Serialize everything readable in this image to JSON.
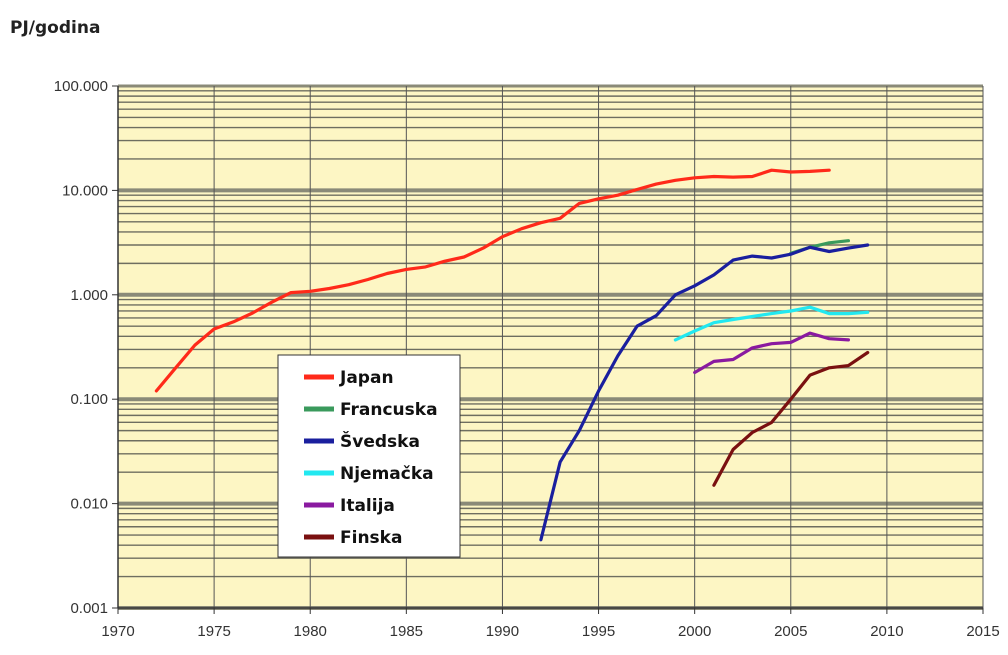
{
  "chart_data": {
    "type": "line",
    "ylabel": "PJ/godina",
    "yscale": "log",
    "ylim": [
      0.001,
      100
    ],
    "yticks": [
      {
        "value": 0.001,
        "label": "0.001"
      },
      {
        "value": 0.01,
        "label": "0.010"
      },
      {
        "value": 0.1,
        "label": "0.100"
      },
      {
        "value": 1,
        "label": "1.000"
      },
      {
        "value": 10,
        "label": "10.000"
      },
      {
        "value": 100,
        "label": "100.000"
      }
    ],
    "xlim": [
      1970,
      2015
    ],
    "xticks": [
      1970,
      1975,
      1980,
      1985,
      1990,
      1995,
      2000,
      2005,
      2010,
      2015
    ],
    "grid": true,
    "legend_position": "lower-left",
    "series": [
      {
        "name": "Japan",
        "color": "#ff2a1a",
        "x": [
          1972,
          1973,
          1974,
          1975,
          1976,
          1977,
          1978,
          1979,
          1980,
          1981,
          1982,
          1983,
          1984,
          1985,
          1986,
          1987,
          1988,
          1989,
          1990,
          1991,
          1992,
          1993,
          1994,
          1995,
          1996,
          1997,
          1998,
          1999,
          2000,
          2001,
          2002,
          2003,
          2004,
          2005,
          2006,
          2007
        ],
        "y": [
          0.12,
          0.2,
          0.33,
          0.47,
          0.55,
          0.67,
          0.85,
          1.05,
          1.08,
          1.15,
          1.25,
          1.4,
          1.6,
          1.75,
          1.85,
          2.1,
          2.3,
          2.8,
          3.6,
          4.3,
          4.9,
          5.4,
          7.5,
          8.3,
          9.0,
          10.2,
          11.5,
          12.5,
          13.2,
          13.6,
          13.4,
          13.6,
          15.6,
          15.0,
          15.2,
          15.6
        ]
      },
      {
        "name": "Francuska",
        "color": "#3a9a5c",
        "x": [
          2005,
          2006,
          2007,
          2008
        ],
        "y": [
          2.5,
          2.85,
          3.15,
          3.3
        ]
      },
      {
        "name": "Švedska",
        "color": "#1a1f9e",
        "x": [
          1992,
          1993,
          1994,
          1995,
          1996,
          1997,
          1998,
          1999,
          2000,
          2001,
          2002,
          2003,
          2004,
          2005,
          2006,
          2007,
          2008,
          2009
        ],
        "y": [
          0.0045,
          0.025,
          0.05,
          0.12,
          0.26,
          0.5,
          0.63,
          1.0,
          1.22,
          1.55,
          2.15,
          2.35,
          2.25,
          2.45,
          2.85,
          2.6,
          2.8,
          3.0
        ]
      },
      {
        "name": "Njemačka",
        "color": "#22e8f0",
        "x": [
          1999,
          2000,
          2001,
          2002,
          2003,
          2004,
          2005,
          2006,
          2007,
          2008,
          2009
        ],
        "y": [
          0.37,
          0.45,
          0.54,
          0.58,
          0.62,
          0.66,
          0.7,
          0.76,
          0.66,
          0.66,
          0.68
        ]
      },
      {
        "name": "Italija",
        "color": "#8a1aa0",
        "x": [
          2000,
          2001,
          2002,
          2003,
          2004,
          2005,
          2006,
          2007,
          2008
        ],
        "y": [
          0.18,
          0.23,
          0.24,
          0.31,
          0.34,
          0.35,
          0.43,
          0.38,
          0.37
        ]
      },
      {
        "name": "Finska",
        "color": "#7a1010",
        "x": [
          2001,
          2002,
          2003,
          2004,
          2005,
          2006,
          2007,
          2008,
          2009
        ],
        "y": [
          0.015,
          0.033,
          0.048,
          0.06,
          0.1,
          0.17,
          0.2,
          0.21,
          0.28
        ]
      }
    ]
  }
}
